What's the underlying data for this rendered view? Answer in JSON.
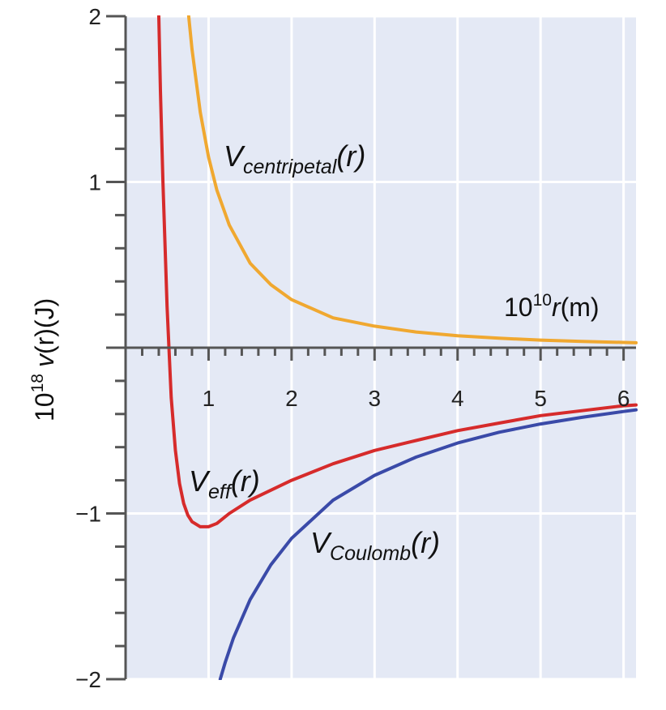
{
  "chart_data": {
    "type": "line",
    "xlabel": {
      "base": "10",
      "exp": "10",
      "var": "r",
      "unit": "(m)"
    },
    "ylabel": {
      "base": "10",
      "exp": "18",
      "var": "v",
      "arg": "(r)",
      "unit": "(J)"
    },
    "xlim": [
      0,
      6.15
    ],
    "ylim": [
      -2,
      2
    ],
    "x_ticks": [
      "1",
      "2",
      "3",
      "4",
      "5",
      "6"
    ],
    "y_ticks": [
      "2",
      "1",
      "−1",
      "−2"
    ],
    "grid": true,
    "background_color": "#e4e9f5",
    "series": [
      {
        "name": "centripetal",
        "label_main": "V",
        "label_sub": "centripetal",
        "label_arg": "(r)",
        "color": "#f0a830",
        "x": [
          0.76,
          0.8,
          0.9,
          1.0,
          1.1,
          1.25,
          1.5,
          1.75,
          2.0,
          2.5,
          3.0,
          3.5,
          4.0,
          4.5,
          5.0,
          5.5,
          6.0,
          6.15
        ],
        "y": [
          2.0,
          1.8,
          1.42,
          1.15,
          0.95,
          0.74,
          0.51,
          0.38,
          0.29,
          0.18,
          0.13,
          0.095,
          0.072,
          0.057,
          0.046,
          0.038,
          0.032,
          0.03
        ]
      },
      {
        "name": "Coulomb",
        "label_main": "V",
        "label_sub": "Coulomb",
        "label_arg": "(r)",
        "color": "#3a4aa8",
        "x": [
          1.14,
          1.2,
          1.3,
          1.5,
          1.75,
          2.0,
          2.5,
          3.0,
          3.5,
          4.0,
          4.5,
          5.0,
          5.5,
          6.0,
          6.15
        ],
        "y": [
          -2.0,
          -1.9,
          -1.75,
          -1.52,
          -1.31,
          -1.15,
          -0.92,
          -0.77,
          -0.66,
          -0.575,
          -0.51,
          -0.46,
          -0.42,
          -0.385,
          -0.375
        ]
      },
      {
        "name": "eff",
        "label_main": "V",
        "label_sub": "eff",
        "label_arg": "(r)",
        "color": "#d62b2b",
        "x": [
          0.4,
          0.42,
          0.45,
          0.5,
          0.55,
          0.6,
          0.65,
          0.7,
          0.75,
          0.8,
          0.9,
          1.0,
          1.1,
          1.25,
          1.5,
          2.0,
          2.5,
          3.0,
          3.5,
          4.0,
          4.5,
          5.0,
          5.5,
          6.0,
          6.15
        ],
        "y": [
          2.0,
          1.55,
          1.0,
          0.25,
          -0.3,
          -0.62,
          -0.82,
          -0.94,
          -1.01,
          -1.05,
          -1.08,
          -1.08,
          -1.06,
          -1.0,
          -0.92,
          -0.8,
          -0.7,
          -0.62,
          -0.56,
          -0.5,
          -0.455,
          -0.41,
          -0.38,
          -0.35,
          -0.345
        ]
      }
    ]
  }
}
